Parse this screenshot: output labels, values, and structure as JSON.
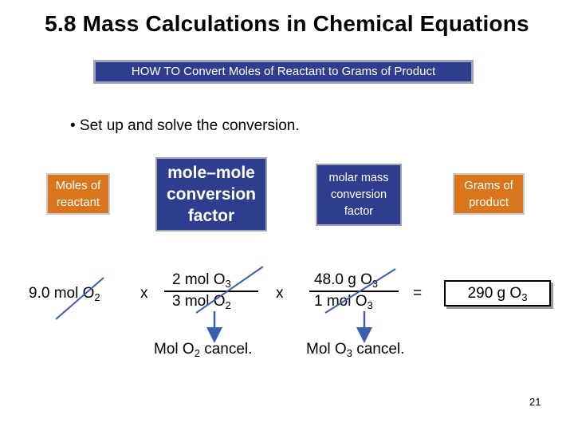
{
  "title": "5.8  Mass Calculations in Chemical Equations",
  "howto": "HOW TO Convert Moles of Reactant to Grams of Product",
  "bullet": "• Set up and solve the conversion.",
  "boxes": {
    "moles_of_reactant": [
      "Moles of",
      "reactant"
    ],
    "mole_mole_factor": [
      "mole–mole",
      "conversion",
      "factor"
    ],
    "molar_mass_factor": [
      "molar mass",
      "conversion",
      "factor"
    ],
    "grams_of_product": [
      "Grams of",
      "product"
    ]
  },
  "equation": {
    "start": {
      "value": "9.0 mol O",
      "sub": "2"
    },
    "times1": "x",
    "f1_num": {
      "value": "2 mol O",
      "sub": "3"
    },
    "f1_den": {
      "value": "3 mol O",
      "sub": "2"
    },
    "times2": "x",
    "f2_num": {
      "value": "48.0 g O",
      "sub": "3"
    },
    "f2_den": {
      "value": "1 mol O",
      "sub": "3"
    },
    "equals": "=",
    "answer": {
      "value": "290 g O",
      "sub": "3"
    }
  },
  "notes": {
    "cancel1": {
      "pre": "Mol O",
      "sub": "2",
      "post": " cancel."
    },
    "cancel2": {
      "pre": "Mol O",
      "sub": "3",
      "post": " cancel."
    }
  },
  "page_number": "21",
  "colors": {
    "navy": "#2f3d8f",
    "orange": "#d9761c",
    "strike": "#3b5fb0"
  }
}
